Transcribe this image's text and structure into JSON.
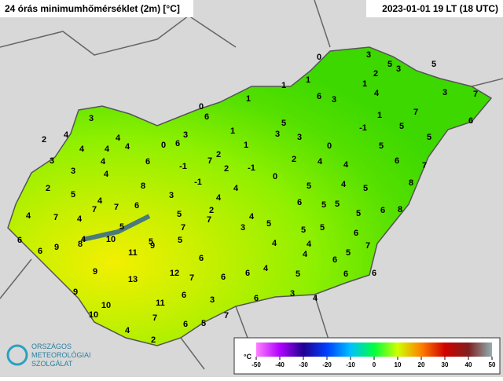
{
  "header": {
    "title": "24 órás minimumhőmérséklet (2m) [°C]",
    "date": "2023-01-01 19 LT (18 UTC)"
  },
  "stations": [
    0,
    3,
    5,
    3,
    5,
    2,
    1,
    1,
    1,
    1,
    6,
    3,
    4,
    7,
    3,
    7,
    0,
    6,
    5,
    1,
    6,
    5,
    3,
    1,
    3,
    3,
    -1,
    5,
    2,
    4,
    4,
    4,
    4,
    4,
    0,
    6,
    3,
    1,
    0,
    5,
    3,
    4,
    2,
    6,
    7,
    2,
    4,
    4,
    7,
    -1,
    2,
    -1,
    6,
    3,
    4,
    0,
    8,
    -1,
    4,
    8,
    2,
    5,
    4,
    5,
    5,
    3,
    4,
    4,
    6,
    7,
    5,
    7,
    2,
    6,
    5,
    7,
    4,
    6,
    8,
    7,
    4,
    4,
    5,
    5,
    7,
    3,
    5,
    5,
    5,
    6,
    6,
    4,
    10,
    5,
    5,
    9,
    8,
    5,
    4,
    4,
    7,
    6,
    11,
    9,
    6,
    4,
    6,
    5,
    9,
    12,
    7,
    6,
    6,
    4,
    5,
    6,
    6,
    13,
    9,
    3,
    6,
    3,
    6,
    4,
    10,
    11,
    10,
    4,
    7,
    6,
    7,
    5,
    2
  ],
  "legend": {
    "unit": "°C",
    "ticks": [
      -50,
      -40,
      -30,
      -20,
      -10,
      0,
      10,
      20,
      30,
      40,
      50
    ]
  },
  "logo": {
    "line1": "ORSZÁGOS",
    "line2": "METEOROLÓGIAI",
    "line3": "SZOLGÁLAT"
  }
}
